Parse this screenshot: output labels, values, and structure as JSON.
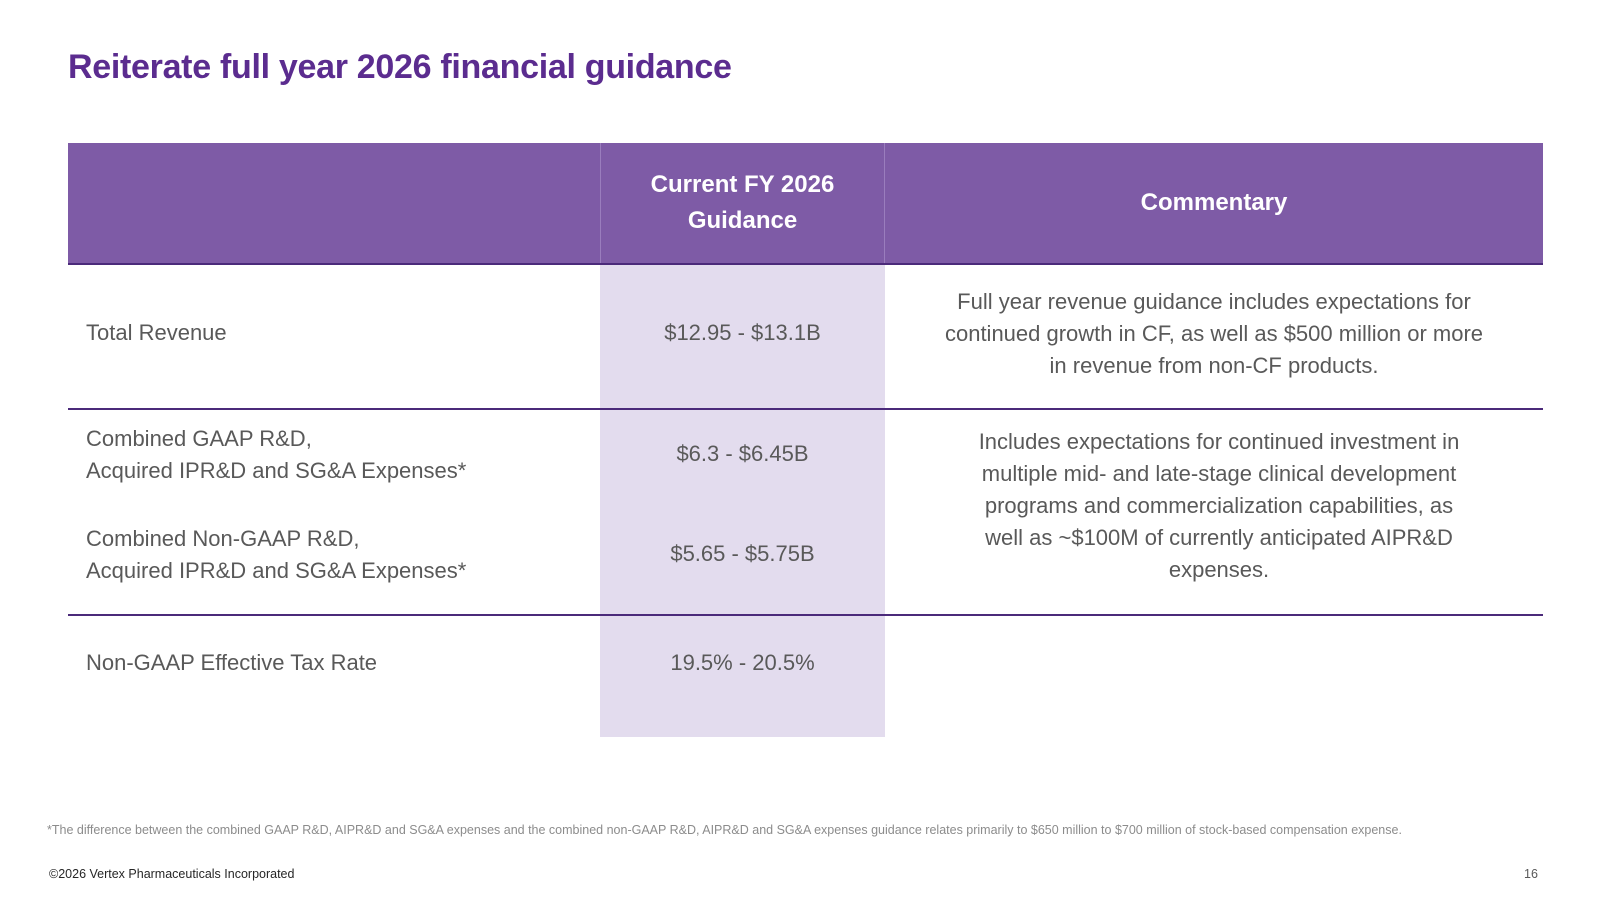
{
  "slide": {
    "title": "Reiterate full year 2026 financial guidance",
    "page_number": "16",
    "copyright": "©2026 Vertex Pharmaceuticals Incorporated",
    "footnote": "*The difference between the combined GAAP R&D, AIPR&D and SG&A expenses and the combined non-GAAP R&D, AIPR&D and SG&A expenses guidance relates primarily to $650 million to $700 million of stock-based compensation expense."
  },
  "table": {
    "headers": {
      "metric": "",
      "guidance_line1": "Current FY 2026",
      "guidance_line2": "Guidance",
      "commentary": "Commentary"
    },
    "rows": [
      {
        "label_line1": "Total Revenue",
        "value": "$12.95 - $13.1B",
        "commentary_lines": [
          "Full year revenue guidance includes expectations for",
          "continued growth in CF, as well as $500 million or more",
          "in revenue from non-CF products."
        ]
      },
      {
        "label_line1": "Combined GAAP R&D,",
        "label_line2": "Acquired IPR&D and SG&A Expenses*",
        "value": "$6.3 - $6.45B"
      },
      {
        "label_line1": "Combined Non-GAAP R&D,",
        "label_line2": "Acquired IPR&D and SG&A Expenses*",
        "value": "$5.65 - $5.75B"
      },
      {
        "label_line1": "Non-GAAP Effective Tax Rate",
        "value": "19.5% - 20.5%"
      }
    ],
    "shared_commentary_lines": [
      "Includes expectations for continued investment in",
      "multiple mid- and late-stage clinical development",
      "programs and commercialization capabilities, as",
      "well as ~$100M of currently anticipated AIPR&D",
      "expenses."
    ]
  },
  "colors": {
    "title": "#5b2c8f",
    "header_bg": "#7e5ba6",
    "guidance_column_bg": "#e3dcee",
    "rule": "#4b2a7a",
    "body_text": "#595959"
  }
}
